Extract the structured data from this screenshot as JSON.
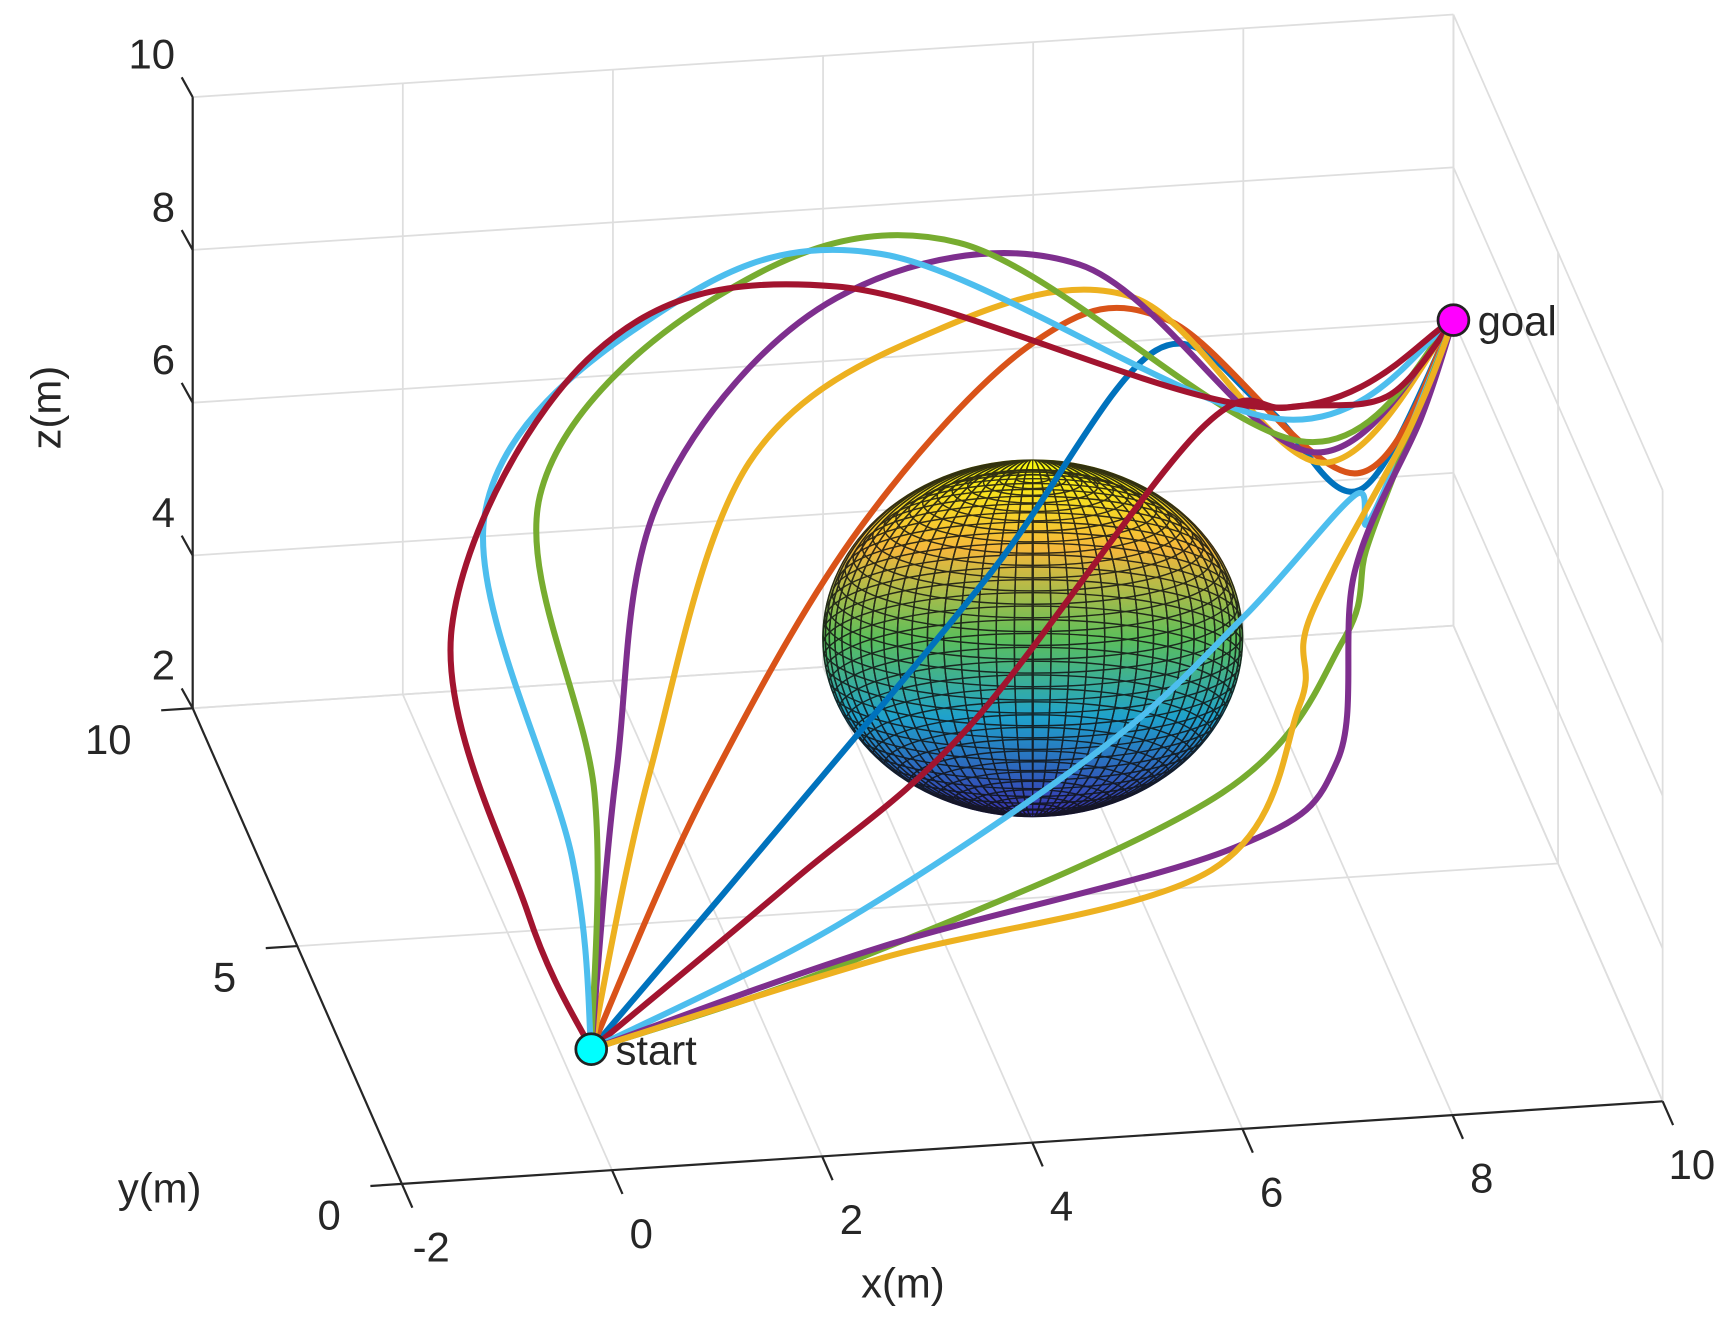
{
  "chart_data": {
    "type": "line3d",
    "xlabel": "x(m)",
    "ylabel": "y(m)",
    "zlabel": "z(m)",
    "xlim": [
      -2,
      10
    ],
    "ylim": [
      0,
      10
    ],
    "zlim": [
      2,
      10
    ],
    "xticks": [
      -2,
      0,
      2,
      4,
      6,
      8,
      10
    ],
    "yticks": [
      0,
      5,
      10
    ],
    "zticks": [
      2,
      4,
      6,
      8,
      10
    ],
    "grid": true,
    "obstacle": {
      "center": [
        5,
        5,
        5
      ],
      "radius": 2
    },
    "start": {
      "label": "start",
      "color": "#00ffff",
      "x": 0.3,
      "y": 2.5,
      "z": 2
    },
    "goal": {
      "label": "goal",
      "color": "#ff00ff",
      "x": 10,
      "y": 10,
      "z": 6
    },
    "series": [
      {
        "color": "#0072bd",
        "x": [
          0.3,
          2.21,
          4.6,
          6.47,
          7.82,
          8.95,
          10
        ],
        "y": [
          2.5,
          3.5,
          5,
          6.5,
          8,
          9.2,
          10
        ],
        "z": [
          2,
          3.98,
          6.29,
          8.1,
          6.29,
          4.37,
          6
        ]
      },
      {
        "color": "#d95319",
        "x": [
          0.3,
          1.58,
          3.35,
          5.32,
          6.88,
          8.9,
          10
        ],
        "y": [
          2.5,
          3.5,
          5,
          6.5,
          8,
          9.2,
          10
        ],
        "z": [
          2,
          4.61,
          6.98,
          8.32,
          7.53,
          4.59,
          6
        ]
      },
      {
        "color": "#edb120",
        "x": [
          0.3,
          1.06,
          2.3,
          4.38,
          6.56,
          8.58,
          10
        ],
        "y": [
          2.5,
          3.5,
          5,
          6.5,
          8,
          9.2,
          10
        ],
        "z": [
          2,
          4.95,
          7.94,
          8.55,
          7.85,
          4.76,
          6
        ]
      },
      {
        "color": "#7e2f8e",
        "x": [
          0.3,
          0.74,
          1.46,
          3.43,
          6.04,
          8.48,
          10
        ],
        "y": [
          2.5,
          3.5,
          5,
          6.5,
          8,
          9.2,
          10
        ],
        "z": [
          2,
          4.98,
          7.58,
          9.06,
          8.33,
          4.91,
          6
        ]
      },
      {
        "color": "#77ac30",
        "x": [
          0.3,
          0.53,
          0.31,
          2.28,
          4.89,
          8.38,
          10
        ],
        "y": [
          2.5,
          3.5,
          5,
          6.5,
          8,
          9.2,
          10
        ],
        "z": [
          2,
          4.71,
          7.69,
          9.17,
          8.72,
          5.06,
          6
        ]
      },
      {
        "color": "#4dbeee",
        "x": [
          0.3,
          0.32,
          -0.22,
          1.65,
          4.15,
          8.17,
          10
        ],
        "y": [
          2.5,
          3.5,
          5,
          6.5,
          8,
          9.2,
          10
        ],
        "z": [
          2,
          3.86,
          7.45,
          8.94,
          8.64,
          5.37,
          6
        ]
      },
      {
        "color": "#a2142f",
        "x": [
          0.3,
          -0.1,
          -0.53,
          1.13,
          3.73,
          8.06,
          10
        ],
        "y": [
          2.5,
          3.5,
          5,
          6.5,
          8,
          9.2,
          10
        ],
        "z": [
          2,
          3.18,
          6.03,
          8.55,
          8.25,
          5.53,
          6
        ]
      },
      {
        "color": "#a2142f",
        "x": [
          0.3,
          2.42,
          4.39,
          6.89,
          8.03,
          9.21,
          10
        ],
        "y": [
          2.5,
          3.5,
          5,
          6.5,
          8,
          9.2,
          10
        ],
        "z": [
          2,
          3.39,
          4.29,
          7.02,
          6.28,
          5.57,
          6
        ]
      },
      {
        "color": "#4dbeee",
        "x": [
          0.3,
          2.84,
          5.65,
          7.31,
          8.66,
          9.06,
          10
        ],
        "y": [
          2.5,
          3.5,
          5,
          6.5,
          8,
          9.2,
          10
        ],
        "z": [
          2,
          2.77,
          3.89,
          4.54,
          5.07,
          4.0,
          6
        ]
      },
      {
        "color": "#77ac30",
        "x": [
          0.3,
          3.05,
          6.8,
          8.26,
          8.77,
          9.32,
          10
        ],
        "y": [
          2.5,
          3.5,
          5,
          6.5,
          8,
          9.2,
          10
        ],
        "z": [
          2,
          2.32,
          3.21,
          4.16,
          4.34,
          4.69,
          6
        ]
      },
      {
        "color": "#7e2f8e",
        "x": [
          0.3,
          3.26,
          6.91,
          8.2,
          8.66,
          9.53,
          10
        ],
        "y": [
          2.5,
          3.5,
          5,
          6.5,
          8,
          9.2,
          10
        ],
        "z": [
          2,
          2.45,
          2.48,
          2.58,
          4.06,
          5.25,
          6
        ]
      },
      {
        "color": "#edb120",
        "x": [
          0.3,
          3.26,
          6.7,
          7.84,
          8.24,
          9.42,
          10
        ],
        "y": [
          2.5,
          3.5,
          5,
          6.5,
          8,
          9.2,
          10
        ],
        "z": [
          2,
          2.3,
          2.21,
          3.34,
          3.52,
          5.12,
          6
        ]
      }
    ]
  }
}
